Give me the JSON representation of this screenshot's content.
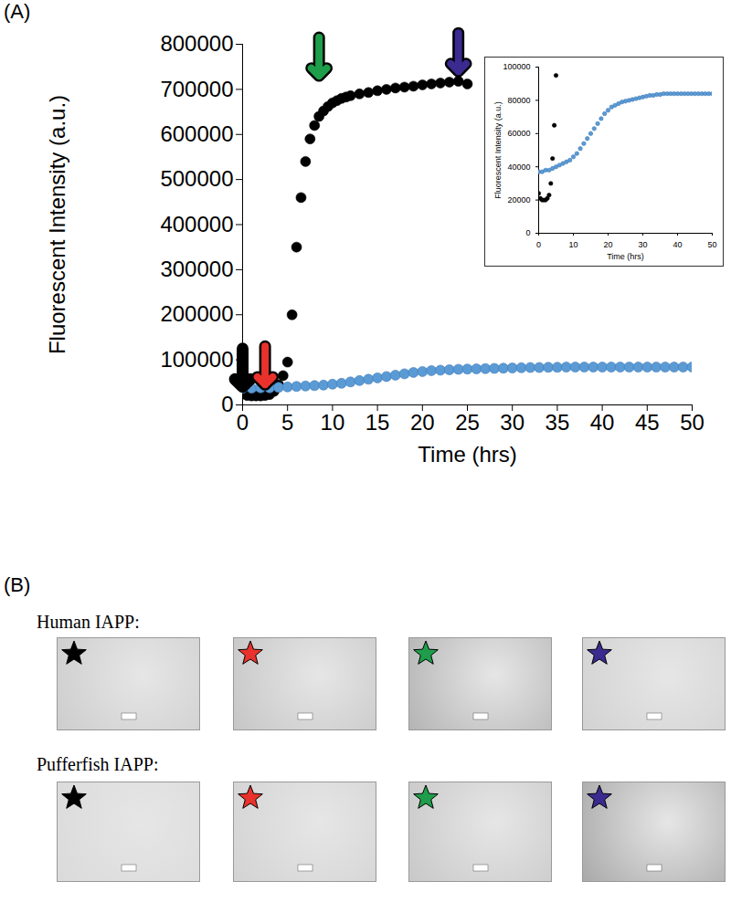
{
  "chart_data": [
    {
      "type": "scatter",
      "x_label": "Time (hrs)",
      "y_label": "Fluorescent Intensity (a.u.)",
      "xlim": [
        0,
        50
      ],
      "xticks": [
        0,
        5,
        10,
        15,
        20,
        25,
        30,
        35,
        40,
        45,
        50
      ],
      "ylim": [
        0,
        800000
      ],
      "yticks": [
        0,
        100000,
        200000,
        300000,
        400000,
        500000,
        600000,
        700000,
        800000
      ],
      "grid": false,
      "marker": "circle",
      "series": [
        {
          "color": "#000000",
          "x": [
            0,
            0.5,
            1,
            1.5,
            2,
            2.5,
            3,
            3.5,
            4,
            4.5,
            5,
            5.5,
            6,
            6.5,
            7,
            7.5,
            8,
            8.5,
            9,
            9.5,
            10,
            10.5,
            11,
            11.5,
            12,
            13,
            14,
            15,
            16,
            17,
            18,
            19,
            20,
            21,
            22,
            23,
            24,
            25
          ],
          "values": [
            24000,
            21000,
            20000,
            20000,
            20000,
            21000,
            23000,
            30000,
            45000,
            65000,
            95000,
            200000,
            350000,
            460000,
            540000,
            590000,
            620000,
            640000,
            652000,
            662000,
            670000,
            675000,
            680000,
            683000,
            686000,
            690000,
            693000,
            697000,
            700000,
            703000,
            705000,
            707000,
            710000,
            712000,
            714000,
            716000,
            718000,
            712000
          ]
        },
        {
          "color": "#5b9bd5",
          "x": [
            0,
            1,
            2,
            3,
            4,
            5,
            6,
            7,
            8,
            9,
            10,
            11,
            12,
            13,
            14,
            15,
            16,
            17,
            18,
            19,
            20,
            21,
            22,
            23,
            24,
            25,
            26,
            27,
            28,
            29,
            30,
            31,
            32,
            33,
            34,
            35,
            36,
            37,
            38,
            39,
            40,
            41,
            42,
            43,
            44,
            45,
            46,
            47,
            48,
            49,
            50
          ],
          "values": [
            37000,
            37000,
            38000,
            38000,
            39000,
            40000,
            41000,
            42000,
            43000,
            44000,
            46000,
            48000,
            51000,
            54000,
            57000,
            60000,
            63000,
            66000,
            69000,
            72000,
            74000,
            76000,
            77000,
            78000,
            79000,
            79500,
            80000,
            80500,
            81000,
            81500,
            82000,
            82500,
            83000,
            83000,
            83500,
            83500,
            84000,
            84000,
            84000,
            84000,
            84000,
            84000,
            84000,
            84000,
            84000,
            84000,
            84000,
            84000,
            84000,
            84000,
            84000
          ]
        }
      ],
      "annotations": [
        {
          "type": "arrow",
          "x": 0,
          "y": 40000,
          "color": "#000000"
        },
        {
          "type": "arrow",
          "x": 2.5,
          "y": 45000,
          "color": "#e8322b"
        },
        {
          "type": "arrow",
          "x": 8.5,
          "y": 730000,
          "color": "#1e9e4a"
        },
        {
          "type": "arrow",
          "x": 24,
          "y": 740000,
          "color": "#3b2a8f"
        }
      ]
    },
    {
      "type": "scatter",
      "x_label": "Time (hrs)",
      "y_label": "Fluorescent Intensity (a.u.)",
      "xlim": [
        0,
        50
      ],
      "xticks": [
        0,
        10,
        20,
        30,
        40,
        50
      ],
      "ylim": [
        0,
        100000
      ],
      "yticks": [
        0,
        20000,
        40000,
        60000,
        80000,
        100000
      ],
      "grid": false,
      "marker": "circle",
      "series": [
        {
          "color": "#000000",
          "x": [
            0,
            0.5,
            1,
            1.5,
            2,
            2.5,
            3,
            3.5,
            4,
            4.5,
            5
          ],
          "values": [
            24000,
            21000,
            20000,
            20000,
            20000,
            21000,
            23000,
            30000,
            45000,
            65000,
            95000
          ]
        },
        {
          "color": "#5b9bd5",
          "x": [
            0,
            1,
            2,
            3,
            4,
            5,
            6,
            7,
            8,
            9,
            10,
            11,
            12,
            13,
            14,
            15,
            16,
            17,
            18,
            19,
            20,
            21,
            22,
            23,
            24,
            25,
            26,
            27,
            28,
            29,
            30,
            31,
            32,
            33,
            34,
            35,
            36,
            37,
            38,
            39,
            40,
            41,
            42,
            43,
            44,
            45,
            46,
            47,
            48,
            49,
            50
          ],
          "values": [
            37000,
            37000,
            38000,
            38000,
            39000,
            40000,
            41000,
            42000,
            43000,
            44000,
            46000,
            48000,
            51000,
            54000,
            57000,
            60000,
            63000,
            66000,
            69000,
            72000,
            74000,
            76000,
            77000,
            78000,
            79000,
            79500,
            80000,
            80500,
            81000,
            81500,
            82000,
            82500,
            83000,
            83000,
            83500,
            83500,
            84000,
            84000,
            84000,
            84000,
            84000,
            84000,
            84000,
            84000,
            84000,
            84000,
            84000,
            84000,
            84000,
            84000,
            84000
          ]
        }
      ]
    }
  ],
  "figure": {
    "panel_labels": [
      "(A)",
      "(B)"
    ],
    "rows": [
      {
        "label": "Human IAPP:",
        "stars": [
          "#000000",
          "#e8322b",
          "#1e9e4a",
          "#3b2a8f"
        ]
      },
      {
        "label": "Pufferfish IAPP:",
        "stars": [
          "#000000",
          "#e8322b",
          "#1e9e4a",
          "#3b2a8f"
        ]
      }
    ]
  }
}
